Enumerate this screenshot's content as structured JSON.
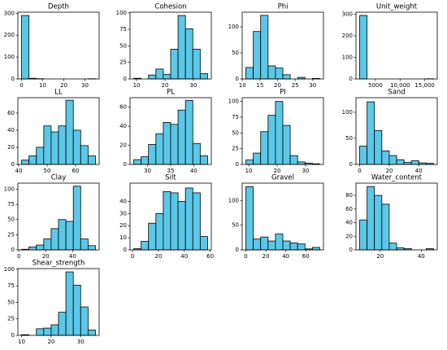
{
  "chart_data": [
    {
      "type": "histogram",
      "title": "Depth",
      "color": "#5bc8e8",
      "bins": [
        0,
        3.5,
        7,
        10.5,
        14,
        17.5,
        21,
        24.5,
        28,
        31.5,
        35
      ],
      "values": [
        290,
        3,
        1,
        0,
        0,
        0,
        0,
        0,
        0,
        1
      ],
      "xlim": [
        -1.75,
        36.75
      ],
      "xticks": [
        0,
        10,
        20,
        30
      ],
      "ylim": [
        0,
        305
      ],
      "yticks": [
        0,
        100,
        200,
        300
      ]
    },
    {
      "type": "histogram",
      "title": "Cohesion",
      "color": "#5bc8e8",
      "bins": [
        9,
        11.6,
        14.2,
        16.8,
        19.4,
        22,
        24.6,
        27.2,
        29.8,
        32.4,
        35
      ],
      "values": [
        1,
        0,
        6,
        15,
        7,
        45,
        96,
        76,
        45,
        8
      ],
      "xlim": [
        7.7,
        36.3
      ],
      "xticks": [
        10,
        20,
        30
      ],
      "ylim": [
        0,
        101
      ],
      "yticks": [
        0,
        25,
        50,
        75,
        100
      ]
    },
    {
      "type": "histogram",
      "title": "Phi",
      "color": "#5bc8e8",
      "bins": [
        11,
        13.1,
        15.2,
        17.3,
        19.4,
        21.5,
        23.6,
        25.7,
        27.8,
        29.9,
        32
      ],
      "values": [
        22,
        91,
        122,
        25,
        21,
        8,
        0,
        3,
        0,
        1
      ],
      "xlim": [
        9.95,
        33.05
      ],
      "xticks": [
        10,
        15,
        20,
        25,
        30
      ],
      "ylim": [
        0,
        128
      ],
      "yticks": [
        0,
        50,
        100
      ]
    },
    {
      "type": "histogram",
      "title": "Unit_weight",
      "color": "#5bc8e8",
      "bins": [
        1800,
        3300,
        4800,
        6300,
        7800,
        9300,
        10800,
        12300,
        13800,
        15300,
        16800
      ],
      "values": [
        295,
        0,
        0,
        0,
        0,
        0,
        0,
        0,
        0,
        1
      ],
      "xlim": [
        1050,
        17550
      ],
      "xticks": [
        5000,
        {
          "value": 10000,
          "label": "10,000"
        },
        {
          "value": 15000,
          "label": "15,000"
        }
      ],
      "ylim": [
        0,
        310
      ],
      "yticks": [
        0,
        100,
        200,
        300
      ]
    },
    {
      "type": "histogram",
      "title": "LL",
      "color": "#5bc8e8",
      "bins": [
        41,
        43.6,
        46.2,
        48.8,
        51.4,
        54,
        56.6,
        59.2,
        61.8,
        64.4,
        67
      ],
      "values": [
        5,
        10,
        20,
        45,
        38,
        45,
        75,
        40,
        22,
        10
      ],
      "xlim": [
        39.7,
        68.3
      ],
      "xticks": [
        40,
        50,
        60
      ],
      "ylim": [
        0,
        78
      ],
      "yticks": [
        0,
        20,
        40,
        60
      ]
    },
    {
      "type": "histogram",
      "title": "PL",
      "color": "#5bc8e8",
      "bins": [
        27,
        28.6,
        30.2,
        31.8,
        33.4,
        35,
        36.6,
        38.2,
        39.8,
        41.4,
        43
      ],
      "values": [
        5,
        8,
        21,
        32,
        44,
        42,
        57,
        67,
        22,
        9
      ],
      "xlim": [
        26.2,
        43.8
      ],
      "xticks": [
        30,
        35,
        40
      ],
      "ylim": [
        0,
        70
      ],
      "yticks": [
        0,
        20,
        40,
        60
      ]
    },
    {
      "type": "histogram",
      "title": "PI",
      "color": "#5bc8e8",
      "bins": [
        9,
        11.6,
        14.2,
        16.8,
        19.4,
        22,
        24.6,
        27.2,
        29.8,
        32.4,
        35
      ],
      "values": [
        7,
        18,
        52,
        78,
        100,
        62,
        14,
        4,
        2,
        1
      ],
      "xlim": [
        7.7,
        36.3
      ],
      "xticks": [
        10,
        20,
        30
      ],
      "ylim": [
        0,
        106
      ],
      "yticks": [
        0,
        25,
        50,
        75,
        100
      ]
    },
    {
      "type": "histogram",
      "title": "Sand",
      "color": "#5bc8e8",
      "bins": [
        0,
        5,
        10,
        15,
        20,
        25,
        30,
        35,
        40,
        45,
        50
      ],
      "values": [
        35,
        120,
        65,
        26,
        17,
        9,
        4,
        7,
        3,
        2
      ],
      "xlim": [
        -2.5,
        52.5
      ],
      "xticks": [
        0,
        20,
        40
      ],
      "ylim": [
        0,
        128
      ],
      "yticks": [
        0,
        50,
        100
      ]
    },
    {
      "type": "histogram",
      "title": "Clay",
      "color": "#5bc8e8",
      "bins": [
        2,
        7.5,
        13,
        18.5,
        24,
        29.5,
        35,
        40.5,
        46,
        51.5,
        57
      ],
      "values": [
        1,
        5,
        8,
        18,
        35,
        50,
        47,
        105,
        18,
        7
      ],
      "xlim": [
        -0.75,
        59.75
      ],
      "xticks": [
        0,
        20,
        40
      ],
      "ylim": [
        0,
        110
      ],
      "yticks": [
        0,
        25,
        50,
        75,
        100
      ]
    },
    {
      "type": "histogram",
      "title": "Silt",
      "color": "#5bc8e8",
      "bins": [
        1,
        6.7,
        12.4,
        18.1,
        23.8,
        29.5,
        35.2,
        40.9,
        46.6,
        52.3,
        58
      ],
      "values": [
        1,
        7,
        22,
        30,
        48,
        47,
        40,
        51,
        47,
        11
      ],
      "xlim": [
        -1.85,
        60.85
      ],
      "xticks": [
        0,
        20,
        40,
        60
      ],
      "ylim": [
        0,
        55
      ],
      "yticks": [
        0,
        10,
        20,
        30,
        40
      ]
    },
    {
      "type": "histogram",
      "title": "Gravel",
      "color": "#5bc8e8",
      "bins": [
        0,
        7.4,
        14.8,
        22.2,
        29.6,
        37,
        44.4,
        51.8,
        59.2,
        66.6,
        74
      ],
      "values": [
        128,
        22,
        26,
        18,
        32,
        18,
        14,
        12,
        2,
        5
      ],
      "xlim": [
        -3.7,
        77.7
      ],
      "xticks": [
        0,
        20,
        40,
        60
      ],
      "ylim": [
        0,
        135
      ],
      "yticks": [
        0,
        50,
        100
      ]
    },
    {
      "type": "histogram",
      "title": "Water_content",
      "color": "#5bc8e8",
      "bins": [
        10,
        13.6,
        17.2,
        20.8,
        24.4,
        28,
        31.6,
        35.2,
        38.8,
        42.4,
        46
      ],
      "values": [
        44,
        93,
        80,
        67,
        10,
        3,
        2,
        0,
        0,
        2
      ],
      "xlim": [
        8.2,
        47.8
      ],
      "xticks": [
        20,
        40
      ],
      "ylim": [
        0,
        98
      ],
      "yticks": [
        0,
        20,
        40,
        60,
        80
      ]
    },
    {
      "type": "histogram",
      "title": "Shear_strength",
      "color": "#5bc8e8",
      "bins": [
        10,
        12.5,
        15,
        17.5,
        20,
        22.5,
        25,
        27.5,
        30,
        32.5,
        35
      ],
      "values": [
        1,
        0,
        10,
        11,
        16,
        35,
        96,
        76,
        43,
        8
      ],
      "xlim": [
        8.75,
        36.25
      ],
      "xticks": [
        10,
        20,
        30
      ],
      "ylim": [
        0,
        101
      ],
      "yticks": [
        0,
        25,
        50,
        75,
        100
      ]
    }
  ]
}
